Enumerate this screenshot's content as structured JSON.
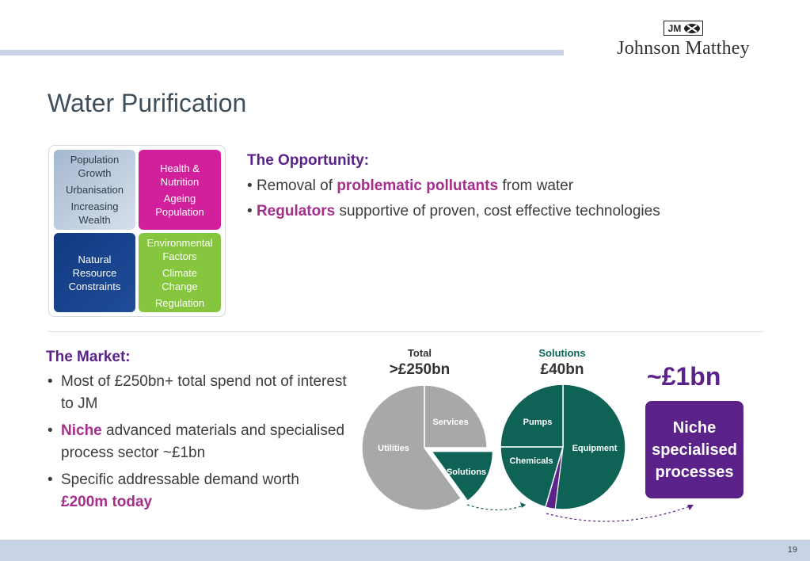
{
  "logo": {
    "mark": "JM",
    "name": "Johnson Matthey"
  },
  "title": "Water Purification",
  "drivers": {
    "t1": [
      "Population Growth",
      "Urbanisation",
      "Increasing Wealth"
    ],
    "t2": [
      "Health & Nutrition",
      "Ageing Population"
    ],
    "t3": [
      "Natural Resource Constraints"
    ],
    "t4": [
      "Environmental Factors",
      "Climate Change",
      "Regulation"
    ]
  },
  "opportunity": {
    "heading": "The Opportunity:",
    "b1_pre": "Removal of ",
    "b1_em": "problematic pollutants",
    "b1_post": " from water",
    "b2_em": "Regulators",
    "b2_post": " supportive of proven, cost effective technologies"
  },
  "market": {
    "heading": "The Market:",
    "b1": "Most of £250bn+ total spend not of interest to JM",
    "b2_em": "Niche",
    "b2_post": " advanced materials and specialised process sector ~£1bn",
    "b3_pre": "Specific addressable demand worth ",
    "b3_em": "£200m today"
  },
  "chart_data": [
    {
      "type": "pie",
      "title": "Total",
      "subtitle": ">£250bn",
      "categories": [
        "Services",
        "Solutions",
        "Utilities"
      ],
      "values": [
        25,
        15,
        60
      ],
      "exploded": "Solutions"
    },
    {
      "type": "pie",
      "title": "Solutions",
      "subtitle": "£40bn",
      "categories": [
        "Equipment",
        "Niche",
        "Chemicals",
        "Pumps"
      ],
      "values": [
        52,
        2.5,
        20.5,
        25
      ]
    }
  ],
  "niche_value": "~£1bn",
  "niche_box": "Niche specialised processes",
  "page_number": "19",
  "colors": {
    "purple": "#5b2289",
    "magenta": "#a52d8c",
    "teal": "#0e6356",
    "grey": "#a6a8aa",
    "pink": "#d21f9b",
    "navy": "#123a82",
    "green": "#86c53e"
  }
}
